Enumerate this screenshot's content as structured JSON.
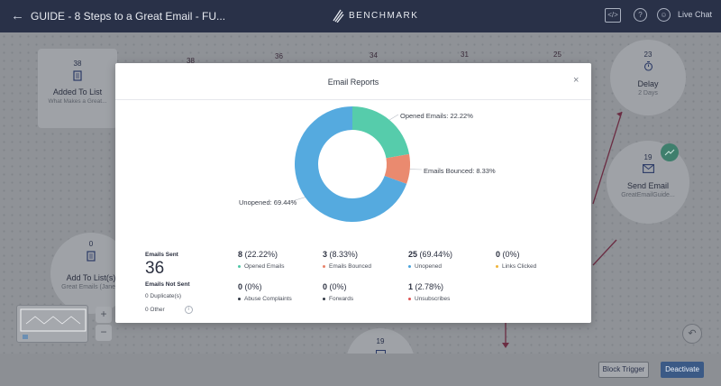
{
  "header": {
    "back_glyph": "←",
    "title": "GUIDE - 8 Steps to a Great Email - FU...",
    "logo_text": "BENCHMARK",
    "code_icon_glyph": "</>",
    "help_icon_glyph": "?",
    "chat_icon_glyph": "☺",
    "live_chat": "Live Chat"
  },
  "canvas": {
    "added_to_list": {
      "count": "38",
      "name": "Added To List",
      "sub": "What Makes a Great..."
    },
    "ghost_counts": [
      "38",
      "36",
      "34",
      "31",
      "25"
    ],
    "delay": {
      "count": "23",
      "name": "Delay",
      "sub": "2 Days"
    },
    "send_email": {
      "count": "19",
      "name": "Send Email",
      "sub": "GreatEmailGuide..."
    },
    "add_to_lists": {
      "count": "0",
      "name": "Add To List(s)",
      "sub": "Great Emails (Jane..."
    },
    "bottom_count": "19",
    "zoom_in": "+",
    "zoom_out": "−",
    "undo_glyph": "↶"
  },
  "footer": {
    "block_trigger": "Block Trigger",
    "deactivate": "Deactivate"
  },
  "modal": {
    "title": "Email Reports",
    "close_glyph": "×",
    "emails_sent_label": "Emails Sent",
    "emails_sent_value": "36",
    "emails_not_sent_label": "Emails Not Sent",
    "duplicates": "0 Duplicate(s)",
    "other": "0 Other",
    "info_glyph": "i",
    "stats": [
      {
        "count": "8",
        "pct": "(22.22%)",
        "label": "Opened Emails",
        "color": "#4fc6a5"
      },
      {
        "count": "3",
        "pct": "(8.33%)",
        "label": "Emails Bounced",
        "color": "#e8836a"
      },
      {
        "count": "25",
        "pct": "(69.44%)",
        "label": "Unopened",
        "color": "#4aa3db"
      },
      {
        "count": "0",
        "pct": "(0%)",
        "label": "Links Clicked",
        "color": "#f0b43a"
      },
      {
        "count": "0",
        "pct": "(0%)",
        "label": "Abuse Complaints",
        "color": "#333a46"
      },
      {
        "count": "0",
        "pct": "(0%)",
        "label": "Forwards",
        "color": "#333a46"
      },
      {
        "count": "1",
        "pct": "(2.78%)",
        "label": "Unsubscribes",
        "color": "#e05252"
      }
    ]
  },
  "chart_data": {
    "type": "pie",
    "title": "",
    "slices": [
      {
        "label": "Opened Emails: 22.22%",
        "value": 22.22,
        "color": "#56ccab"
      },
      {
        "label": "Emails Bounced: 8.33%",
        "value": 8.33,
        "color": "#ea8a6f"
      },
      {
        "label": "Unopened: 69.44%",
        "value": 69.44,
        "color": "#55aadf"
      }
    ],
    "donut": true
  }
}
